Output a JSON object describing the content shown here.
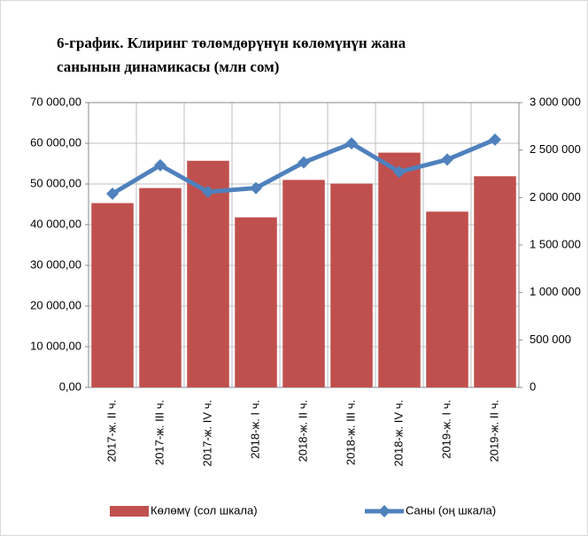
{
  "chart_data": {
    "type": "bar_line",
    "title": [
      "6-график. Клиринг төлөмдөрүнүн көлөмүнүн жана",
      "санынын динамикасы  (млн сом)"
    ],
    "categories": [
      "2017-ж. II ч.",
      "2017-ж. III ч.",
      "2017-ж. IV ч.",
      "2018-ж. I ч.",
      "2018-ж. II ч.",
      "2018-ж. III ч.",
      "2018-ж. IV ч.",
      "2019-ж. I ч.",
      "2019-ж. II ч."
    ],
    "series": [
      {
        "name": "Көлөмү (сол шкала)",
        "color": "#c0504d",
        "type": "bar",
        "values": [
          45300,
          49000,
          55700,
          41800,
          51000,
          50100,
          57700,
          43200,
          51900
        ]
      },
      {
        "name": "Саны (оң шкала)",
        "color": "#4f81bd",
        "type": "line",
        "axis": "y2",
        "values": [
          2040000,
          2340000,
          2060000,
          2100000,
          2370000,
          2570000,
          2270000,
          2400000,
          2610000
        ]
      }
    ],
    "ylim": [
      0,
      70000
    ],
    "yticks": [
      {
        "value": 0,
        "label": "0,00"
      },
      {
        "value": 10000,
        "label": "10 000,00"
      },
      {
        "value": 20000,
        "label": "20 000,00"
      },
      {
        "value": 30000,
        "label": "30 000,00"
      },
      {
        "value": 40000,
        "label": "40 000,00"
      },
      {
        "value": 50000,
        "label": "50 000,00"
      },
      {
        "value": 60000,
        "label": "60 000,00"
      },
      {
        "value": 70000,
        "label": "70 000,00"
      }
    ],
    "y2lim": [
      0,
      3000000
    ],
    "y2ticks": [
      0,
      {
        "value": 500000,
        "label": "500 000"
      },
      {
        "value": 1000000,
        "label": "1 000 000"
      },
      {
        "value": 1500000,
        "label": "1 500 000"
      },
      {
        "value": 2000000,
        "label": "2 000 000"
      },
      {
        "value": 2500000,
        "label": "2 500 000"
      },
      {
        "value": 3000000,
        "label": "3 000 000"
      }
    ],
    "grid": true
  }
}
